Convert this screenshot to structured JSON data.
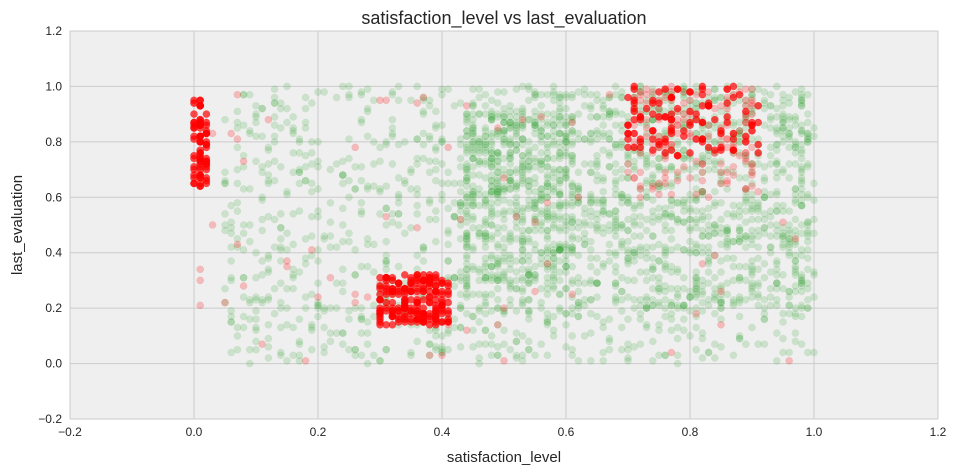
{
  "chart_data": {
    "type": "scatter",
    "title": "satisfaction_level vs last_evaluation",
    "xlabel": "satisfaction_level",
    "ylabel": "last_evaluation",
    "xlim": [
      -0.2,
      1.2
    ],
    "ylim": [
      -0.2,
      1.2
    ],
    "xticks": [
      -0.2,
      0.0,
      0.2,
      0.4,
      0.6,
      0.8,
      1.0,
      1.2
    ],
    "yticks": [
      -0.2,
      0.0,
      0.2,
      0.4,
      0.6,
      0.8,
      1.0,
      1.2
    ],
    "xtick_labels": [
      "−0.2",
      "0.0",
      "0.2",
      "0.4",
      "0.6",
      "0.8",
      "1.0",
      "1.2"
    ],
    "ytick_labels": [
      "−0.2",
      "0.0",
      "0.2",
      "0.4",
      "0.6",
      "0.8",
      "1.0",
      "1.2"
    ],
    "grid": true,
    "series": [
      {
        "color": "#2ca02c",
        "alpha": 0.18,
        "regions": [
          {
            "x": [
              0.43,
              1.0
            ],
            "y": [
              0.2,
              1.0
            ],
            "count": 1500
          },
          {
            "x": [
              0.43,
              1.0
            ],
            "y": [
              0.0,
              0.2
            ],
            "count": 160
          },
          {
            "x": [
              0.05,
              0.43
            ],
            "y": [
              0.0,
              1.0
            ],
            "count": 500
          },
          {
            "x": [
              0.43,
              0.62
            ],
            "y": [
              0.3,
              0.9
            ],
            "count": 300
          }
        ]
      },
      {
        "color": "#ff0000",
        "alpha": 0.7,
        "regions": [
          {
            "x": [
              0.0,
              0.02
            ],
            "y": [
              0.64,
              0.95
            ],
            "count": 80
          },
          {
            "x": [
              0.3,
              0.41
            ],
            "y": [
              0.14,
              0.32
            ],
            "count": 200
          },
          {
            "x": [
              0.7,
              0.91
            ],
            "y": [
              0.75,
              1.0
            ],
            "count": 110
          }
        ]
      },
      {
        "color": "#ff0000",
        "alpha": 0.22,
        "regions": [
          {
            "x": [
              0.7,
              0.91
            ],
            "y": [
              0.6,
              1.0
            ],
            "count": 140
          },
          {
            "x": [
              0.0,
              0.43
            ],
            "y": [
              0.0,
              1.0
            ],
            "count": 40
          },
          {
            "x": [
              0.43,
              1.0
            ],
            "y": [
              0.0,
              1.0
            ],
            "count": 30
          }
        ]
      }
    ]
  }
}
